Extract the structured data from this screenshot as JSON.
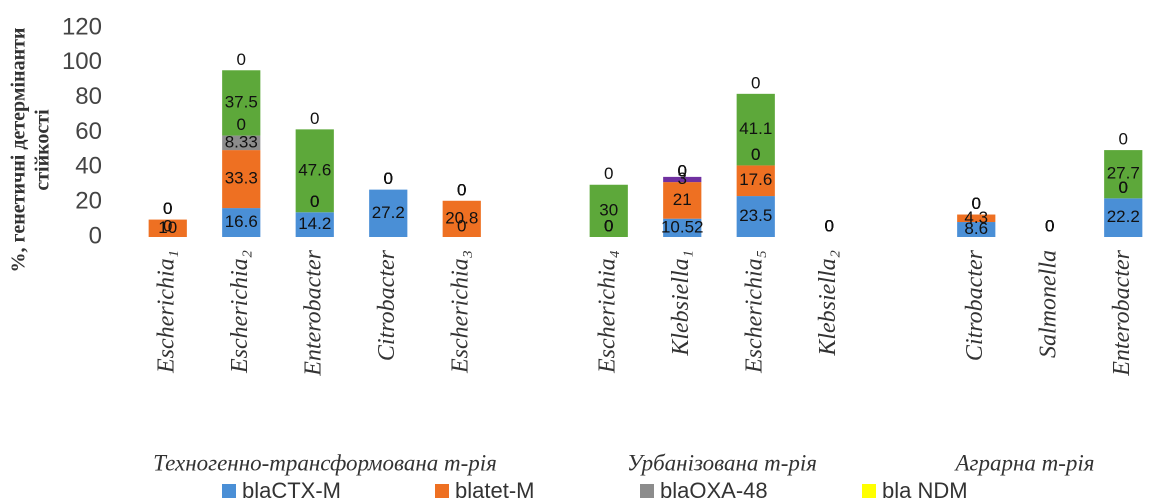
{
  "chart_data": {
    "type": "stacked_bar",
    "y_label": [
      "%, генетичні  детермінанти",
      "стійкості"
    ],
    "categories": [
      "Escherichia₁",
      "Escherichia₂",
      "Enterobacter",
      "Citrobacter",
      "Escherichia₃",
      null,
      "Escherichia₄",
      "Klebsiella₁",
      "Escherichia₅",
      "Klebsiella₂",
      null,
      "Citrobacter",
      "Salmonella",
      "Enterobacter"
    ],
    "groups": [
      "Техногенно-трансформована т-рія",
      "Урбанізована т-рія",
      "Аграрна т-рія"
    ],
    "series": [
      {
        "name": "blaCTX-M",
        "color": "#4a8fd6",
        "values": [
          0,
          16.6,
          14.2,
          27.2,
          0,
          null,
          0,
          10.52,
          23.5,
          0,
          null,
          8.6,
          0,
          22.2
        ]
      },
      {
        "name": "blatet-M",
        "color": "#ee7022",
        "values": [
          10,
          33.3,
          0,
          0,
          20.8,
          null,
          0,
          21,
          17.6,
          0,
          null,
          4.3,
          0,
          0
        ]
      },
      {
        "name": "blaOXA-48",
        "color": "#8c8c8c",
        "values": [
          0,
          8.33,
          0,
          0,
          0,
          null,
          0,
          0,
          0,
          0,
          null,
          0,
          0,
          0
        ]
      },
      {
        "name": "bla NDM",
        "color": "#ffff00",
        "values": [
          0,
          0,
          0,
          0,
          0,
          null,
          0,
          0,
          0,
          0,
          null,
          0,
          0,
          0
        ]
      },
      {
        "color": "#5da83a",
        "values": [
          0,
          37.5,
          47.6,
          0,
          0,
          null,
          30,
          0,
          41.1,
          0,
          null,
          0,
          0,
          27.7
        ]
      },
      {
        "color": "#7030a0",
        "values": [
          0,
          0,
          0,
          0,
          0,
          null,
          0,
          3,
          0,
          0,
          null,
          0,
          0,
          0
        ]
      }
    ],
    "ylim": [
      0,
      120
    ],
    "yticks": [
      0,
      20,
      40,
      60,
      80,
      100,
      120
    ],
    "legend": "bottom"
  }
}
